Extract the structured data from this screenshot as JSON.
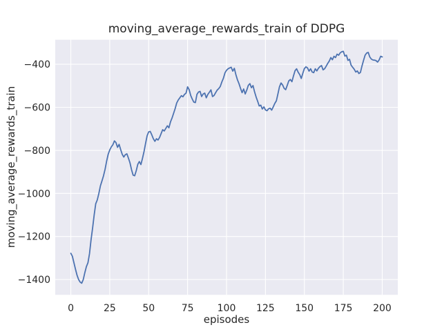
{
  "chart_data": {
    "type": "line",
    "title": "moving_average_rewards_train of DDPG",
    "xlabel": "episodes",
    "ylabel": "moving_average_rewards_train",
    "x_ticks": [
      0,
      25,
      50,
      75,
      100,
      125,
      150,
      175,
      200
    ],
    "y_ticks": [
      -400,
      -600,
      -800,
      -1000,
      -1200,
      -1400
    ],
    "xlim": [
      -10,
      210
    ],
    "ylim": [
      -1470.9,
      -286.2
    ],
    "grid": true,
    "legend": "none",
    "style": {
      "figure_background": "#ffffff",
      "axes_background": "#eaeaf2",
      "grid_color": "#ffffff",
      "line_color": "#4c72b0",
      "text_color": "#262626",
      "line_width": 1.8
    },
    "series": [
      {
        "name": "moving_average_rewards_train",
        "x_start": 0,
        "x_step": 1,
        "values": [
          -1278,
          -1292,
          -1322,
          -1352,
          -1380,
          -1400,
          -1412,
          -1417,
          -1400,
          -1368,
          -1340,
          -1322,
          -1280,
          -1215,
          -1160,
          -1100,
          -1048,
          -1030,
          -1000,
          -965,
          -942,
          -918,
          -888,
          -850,
          -818,
          -798,
          -784,
          -774,
          -756,
          -764,
          -786,
          -772,
          -796,
          -818,
          -831,
          -820,
          -816,
          -836,
          -858,
          -890,
          -915,
          -918,
          -895,
          -865,
          -852,
          -866,
          -838,
          -806,
          -768,
          -732,
          -714,
          -712,
          -728,
          -746,
          -758,
          -746,
          -752,
          -740,
          -722,
          -704,
          -710,
          -698,
          -686,
          -695,
          -668,
          -650,
          -628,
          -606,
          -580,
          -566,
          -556,
          -546,
          -551,
          -540,
          -534,
          -505,
          -518,
          -545,
          -562,
          -576,
          -578,
          -540,
          -529,
          -526,
          -550,
          -538,
          -534,
          -556,
          -540,
          -530,
          -519,
          -550,
          -545,
          -532,
          -520,
          -513,
          -503,
          -482,
          -465,
          -440,
          -428,
          -421,
          -417,
          -414,
          -432,
          -419,
          -448,
          -472,
          -490,
          -512,
          -532,
          -515,
          -538,
          -520,
          -498,
          -490,
          -509,
          -499,
          -528,
          -552,
          -572,
          -594,
          -590,
          -608,
          -598,
          -612,
          -616,
          -607,
          -604,
          -613,
          -598,
          -582,
          -570,
          -538,
          -505,
          -487,
          -496,
          -512,
          -518,
          -498,
          -477,
          -471,
          -481,
          -454,
          -430,
          -421,
          -437,
          -448,
          -466,
          -442,
          -420,
          -412,
          -417,
          -432,
          -421,
          -436,
          -439,
          -421,
          -431,
          -419,
          -411,
          -406,
          -426,
          -421,
          -409,
          -396,
          -385,
          -369,
          -379,
          -363,
          -369,
          -353,
          -358,
          -347,
          -342,
          -340,
          -362,
          -358,
          -382,
          -377,
          -404,
          -414,
          -423,
          -436,
          -431,
          -443,
          -438,
          -408,
          -382,
          -358,
          -348,
          -345,
          -366,
          -376,
          -380,
          -381,
          -383,
          -390,
          -380,
          -363,
          -366
        ]
      }
    ]
  }
}
